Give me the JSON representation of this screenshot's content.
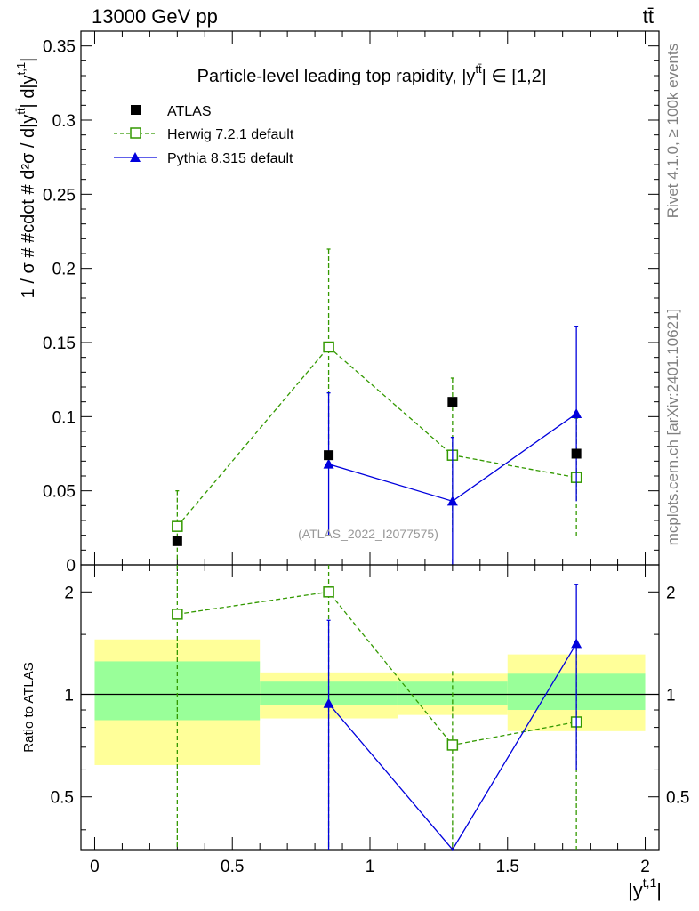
{
  "header": {
    "left": "13000 GeV pp",
    "right": "tt̄"
  },
  "side_texts": {
    "rivet": "Rivet 4.1.0, ≥ 100k events",
    "mcplots": "mcplots.cern.ch [arXiv:2401.10621]"
  },
  "chart_data": [
    {
      "type": "line",
      "title": "Particle-level leading top rapidity, |y^tt̄| ∈ [1,2]",
      "title_main": "Particle-level leading top rapidity, |y",
      "title_sup": "tt̄",
      "title_tail": "| ∈ [1,2]",
      "ylabel": "1 / σ # #cdot # d²σ / d|y^tt̄| d|y^t,1|",
      "ylabel_text": "1 / σ # #cdot # d²σ / d|y",
      "ylabel_sup1": "tt̄",
      "ylabel_mid": "| d|y",
      "ylabel_sup2": "t,1",
      "ylabel_end": "|",
      "ylim": [
        0,
        0.36
      ],
      "yticks": [
        0,
        0.05,
        0.1,
        0.15,
        0.2,
        0.25,
        0.3,
        0.35
      ],
      "ytick_labels": [
        "0",
        "0.05",
        "0.1",
        "0.15",
        "0.2",
        "0.25",
        "0.3",
        "0.35"
      ],
      "xlim": [
        -0.05,
        2.05
      ],
      "watermark": "(ATLAS_2022_I2077575)",
      "legend": [
        {
          "name": "ATLAS",
          "marker": "square-filled",
          "color": "#000000"
        },
        {
          "name": "Herwig 7.2.1 default",
          "marker": "square-open",
          "color": "#339900"
        },
        {
          "name": "Pythia 8.315 default",
          "marker": "triangle",
          "color": "#0000dd"
        }
      ],
      "series": [
        {
          "name": "ATLAS",
          "x": [
            0.3,
            0.85,
            1.3,
            1.75
          ],
          "y": [
            0.016,
            0.074,
            0.11,
            0.075
          ],
          "err": [
            0.0,
            0.0,
            0.0,
            0.0
          ],
          "color": "#000000"
        },
        {
          "name": "Herwig 7.2.1 default",
          "x": [
            0.3,
            0.85,
            1.3,
            1.75
          ],
          "y": [
            0.026,
            0.147,
            0.074,
            0.059
          ],
          "err": [
            0.024,
            0.066,
            0.052,
            0.04
          ],
          "color": "#339900"
        },
        {
          "name": "Pythia 8.315 default",
          "x": [
            0.85,
            1.3,
            1.75
          ],
          "y": [
            0.068,
            0.043,
            0.102
          ],
          "err": [
            0.048,
            0.043,
            0.059
          ],
          "color": "#0000dd"
        }
      ]
    },
    {
      "type": "line",
      "title": "Ratio to ATLAS",
      "ylabel": "Ratio to ATLAS",
      "xlabel": "|y^t,1|",
      "xlabel_main": "|y",
      "xlabel_sup": "t,1",
      "xlabel_end": "|",
      "ylim": [
        0.35,
        2.4
      ],
      "yticks": [
        0.5,
        1,
        2
      ],
      "ytick_labels": [
        "0.5",
        "1",
        "2"
      ],
      "xlim": [
        -0.05,
        2.05
      ],
      "xticks": [
        0,
        0.5,
        1,
        1.5,
        2
      ],
      "xtick_labels": [
        "0",
        "0.5",
        "1",
        "1.5",
        "2"
      ],
      "bands": [
        {
          "x0": 0.0,
          "x1": 0.6,
          "inner": [
            0.84,
            1.25
          ],
          "outer": [
            0.62,
            1.45
          ]
        },
        {
          "x0": 0.6,
          "x1": 1.1,
          "inner": [
            0.93,
            1.09
          ],
          "outer": [
            0.85,
            1.16
          ]
        },
        {
          "x0": 1.1,
          "x1": 1.5,
          "inner": [
            0.93,
            1.09
          ],
          "outer": [
            0.87,
            1.15
          ]
        },
        {
          "x0": 1.5,
          "x1": 2.0,
          "inner": [
            0.9,
            1.15
          ],
          "outer": [
            0.78,
            1.31
          ]
        }
      ],
      "band_colors": {
        "inner": "#99ff99",
        "outer": "#ffff99"
      },
      "series": [
        {
          "name": "Herwig 7.2.1 default",
          "x": [
            0.3,
            0.85,
            1.3,
            1.75
          ],
          "y": [
            1.72,
            2.0,
            0.71,
            0.83
          ],
          "lo": [
            0.35,
            0.35,
            0.35,
            0.35
          ],
          "hi": [
            2.4,
            2.4,
            1.17,
            1.38
          ],
          "color": "#339900"
        },
        {
          "name": "Pythia 8.315 default",
          "x": [
            0.85,
            1.3,
            1.75
          ],
          "y": [
            0.94,
            0.35,
            1.41
          ],
          "lo": [
            0.35,
            0.35,
            0.6
          ],
          "hi": [
            1.65,
            0.35,
            2.1
          ],
          "color": "#0000dd"
        }
      ]
    }
  ]
}
